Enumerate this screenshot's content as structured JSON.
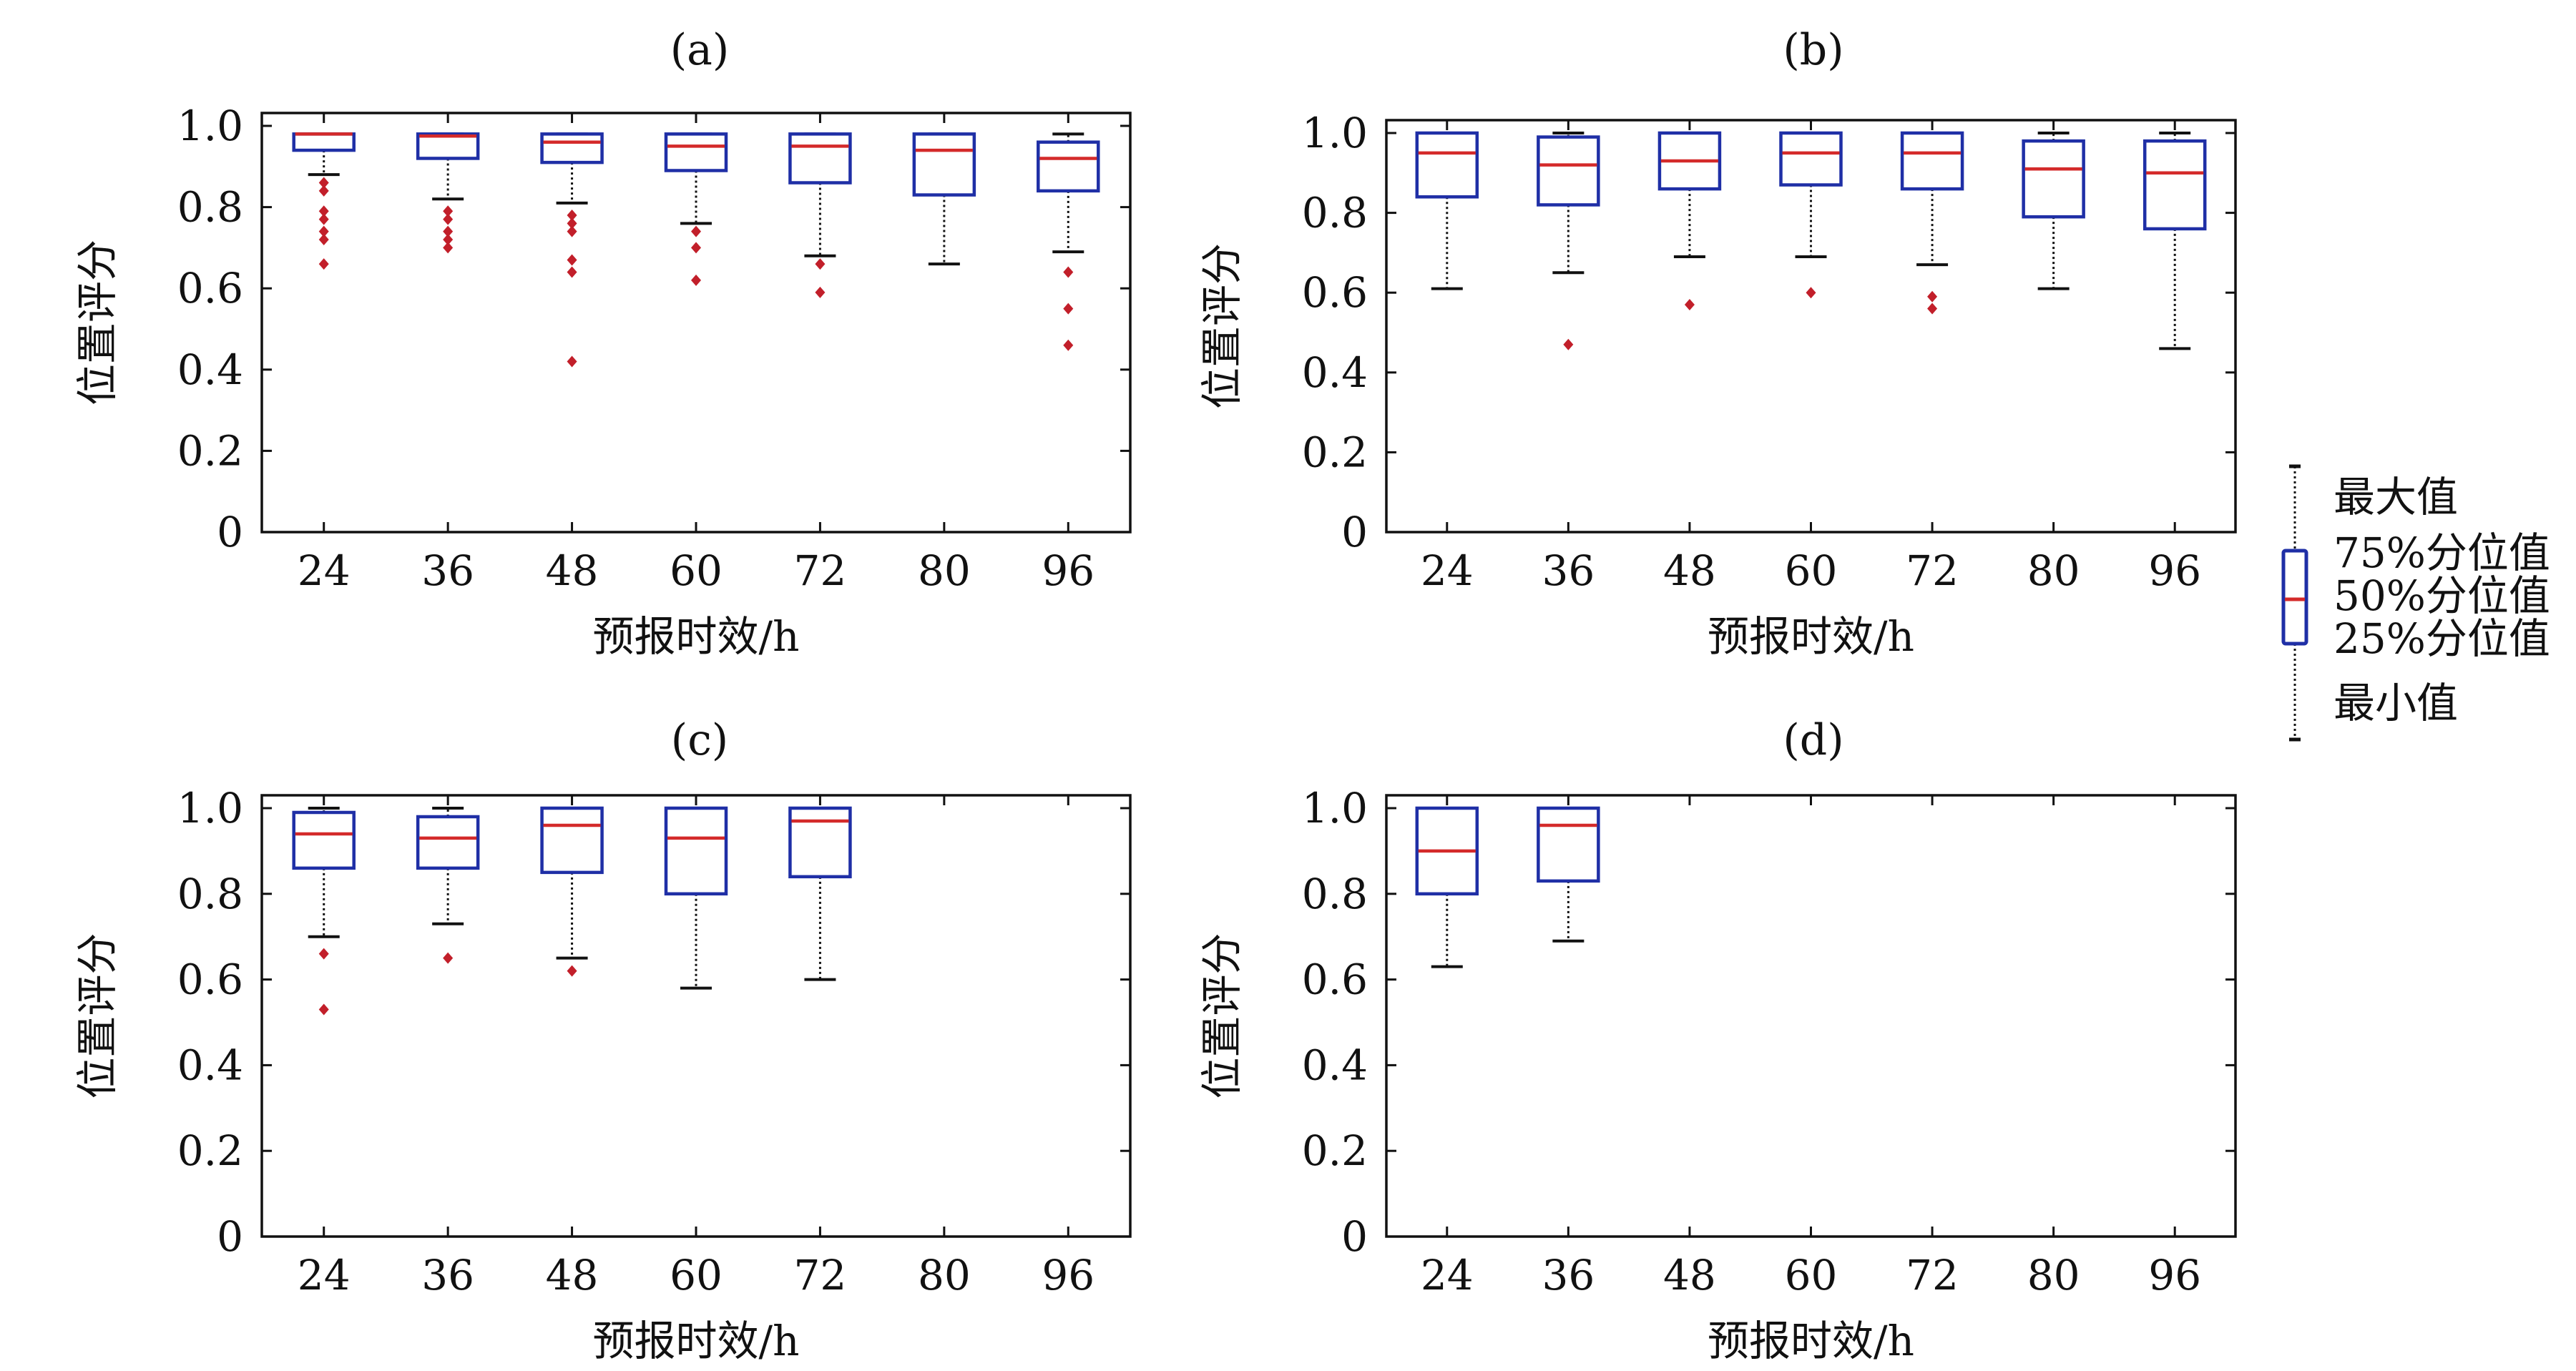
{
  "colors": {
    "box": "#1f2fa6",
    "median": "#d42a2a",
    "outlier": "#c21f2a",
    "axis": "#111111",
    "whisker": "#111111"
  },
  "legend": {
    "max_label": "最大值",
    "q3_label": "75%分位值",
    "median_label": "50%分位值",
    "q1_label": "25%分位值",
    "min_label": "最小值"
  },
  "chart_data": [
    {
      "panel": "(a)",
      "title": "(a)",
      "type": "box",
      "xlabel": "预报时效/h",
      "ylabel": "位置评分",
      "ylim": [
        0,
        1.0
      ],
      "yticks": [
        0,
        0.2,
        0.4,
        0.6,
        0.8,
        1.0
      ],
      "ytick_labels": [
        "0",
        "0.2",
        "0.4",
        "0.6",
        "0.8",
        "1.0"
      ],
      "categories": [
        "24",
        "36",
        "48",
        "60",
        "72",
        "80",
        "96"
      ],
      "boxes": [
        {
          "x": "24",
          "min": 0.88,
          "q1": 0.94,
          "median": 0.98,
          "q3": 0.98,
          "max": 0.98,
          "outliers": [
            0.86,
            0.84,
            0.79,
            0.77,
            0.74,
            0.72,
            0.66
          ]
        },
        {
          "x": "36",
          "min": 0.82,
          "q1": 0.92,
          "median": 0.975,
          "q3": 0.98,
          "max": 0.98,
          "outliers": [
            0.79,
            0.77,
            0.74,
            0.72,
            0.7
          ]
        },
        {
          "x": "48",
          "min": 0.81,
          "q1": 0.91,
          "median": 0.96,
          "q3": 0.98,
          "max": 0.98,
          "outliers": [
            0.78,
            0.76,
            0.74,
            0.67,
            0.64,
            0.42
          ]
        },
        {
          "x": "60",
          "min": 0.76,
          "q1": 0.89,
          "median": 0.95,
          "q3": 0.98,
          "max": 0.98,
          "outliers": [
            0.74,
            0.7,
            0.62
          ]
        },
        {
          "x": "72",
          "min": 0.68,
          "q1": 0.86,
          "median": 0.95,
          "q3": 0.98,
          "max": 0.98,
          "outliers": [
            0.66,
            0.59
          ]
        },
        {
          "x": "80",
          "min": 0.66,
          "q1": 0.83,
          "median": 0.94,
          "q3": 0.98,
          "max": 0.98,
          "outliers": []
        },
        {
          "x": "96",
          "min": 0.69,
          "q1": 0.84,
          "median": 0.92,
          "q3": 0.96,
          "max": 0.98,
          "outliers": [
            0.64,
            0.55,
            0.46
          ]
        }
      ]
    },
    {
      "panel": "(b)",
      "title": "(b)",
      "type": "box",
      "xlabel": "预报时效/h",
      "ylabel": "位置评分",
      "ylim": [
        0,
        1.0
      ],
      "yticks": [
        0,
        0.2,
        0.4,
        0.6,
        0.8,
        1.0
      ],
      "ytick_labels": [
        "0",
        "0.2",
        "0.4",
        "0.6",
        "0.8",
        "1.0"
      ],
      "categories": [
        "24",
        "36",
        "48",
        "60",
        "72",
        "80",
        "96"
      ],
      "boxes": [
        {
          "x": "24",
          "min": 0.61,
          "q1": 0.84,
          "median": 0.95,
          "q3": 1.0,
          "max": 1.0,
          "outliers": []
        },
        {
          "x": "36",
          "min": 0.65,
          "q1": 0.82,
          "median": 0.92,
          "q3": 0.99,
          "max": 1.0,
          "outliers": [
            0.47
          ]
        },
        {
          "x": "48",
          "min": 0.69,
          "q1": 0.86,
          "median": 0.93,
          "q3": 1.0,
          "max": 1.0,
          "outliers": [
            0.57
          ]
        },
        {
          "x": "60",
          "min": 0.69,
          "q1": 0.87,
          "median": 0.95,
          "q3": 1.0,
          "max": 1.0,
          "outliers": [
            0.6
          ]
        },
        {
          "x": "72",
          "min": 0.67,
          "q1": 0.86,
          "median": 0.95,
          "q3": 1.0,
          "max": 1.0,
          "outliers": [
            0.59,
            0.56
          ]
        },
        {
          "x": "80",
          "min": 0.61,
          "q1": 0.79,
          "median": 0.91,
          "q3": 0.98,
          "max": 1.0,
          "outliers": []
        },
        {
          "x": "96",
          "min": 0.46,
          "q1": 0.76,
          "median": 0.9,
          "q3": 0.98,
          "max": 1.0,
          "outliers": []
        }
      ]
    },
    {
      "panel": "(c)",
      "title": "(c)",
      "type": "box",
      "xlabel": "预报时效/h",
      "ylabel": "位置评分",
      "ylim": [
        0,
        1.0
      ],
      "yticks": [
        0,
        0.2,
        0.4,
        0.6,
        0.8,
        1.0
      ],
      "ytick_labels": [
        "0",
        "0.2",
        "0.4",
        "0.6",
        "0.8",
        "1.0"
      ],
      "categories": [
        "24",
        "36",
        "48",
        "60",
        "72",
        "80",
        "96"
      ],
      "boxes": [
        {
          "x": "24",
          "min": 0.7,
          "q1": 0.86,
          "median": 0.94,
          "q3": 0.99,
          "max": 1.0,
          "outliers": [
            0.66,
            0.53
          ]
        },
        {
          "x": "36",
          "min": 0.73,
          "q1": 0.86,
          "median": 0.93,
          "q3": 0.98,
          "max": 1.0,
          "outliers": [
            0.65
          ]
        },
        {
          "x": "48",
          "min": 0.65,
          "q1": 0.85,
          "median": 0.96,
          "q3": 1.0,
          "max": 1.0,
          "outliers": [
            0.62
          ]
        },
        {
          "x": "60",
          "min": 0.58,
          "q1": 0.8,
          "median": 0.93,
          "q3": 1.0,
          "max": 1.0,
          "outliers": []
        },
        {
          "x": "72",
          "min": 0.6,
          "q1": 0.84,
          "median": 0.97,
          "q3": 1.0,
          "max": 1.0,
          "outliers": []
        }
      ]
    },
    {
      "panel": "(d)",
      "title": "(d)",
      "type": "box",
      "xlabel": "预报时效/h",
      "ylabel": "位置评分",
      "ylim": [
        0,
        1.0
      ],
      "yticks": [
        0,
        0.2,
        0.4,
        0.6,
        0.8,
        1.0
      ],
      "ytick_labels": [
        "0",
        "0.2",
        "0.4",
        "0.6",
        "0.8",
        "1.0"
      ],
      "categories": [
        "24",
        "36",
        "48",
        "60",
        "72",
        "80",
        "96"
      ],
      "boxes": [
        {
          "x": "24",
          "min": 0.63,
          "q1": 0.8,
          "median": 0.9,
          "q3": 1.0,
          "max": 1.0,
          "outliers": []
        },
        {
          "x": "36",
          "min": 0.69,
          "q1": 0.83,
          "median": 0.96,
          "q3": 1.0,
          "max": 1.0,
          "outliers": []
        }
      ]
    }
  ]
}
